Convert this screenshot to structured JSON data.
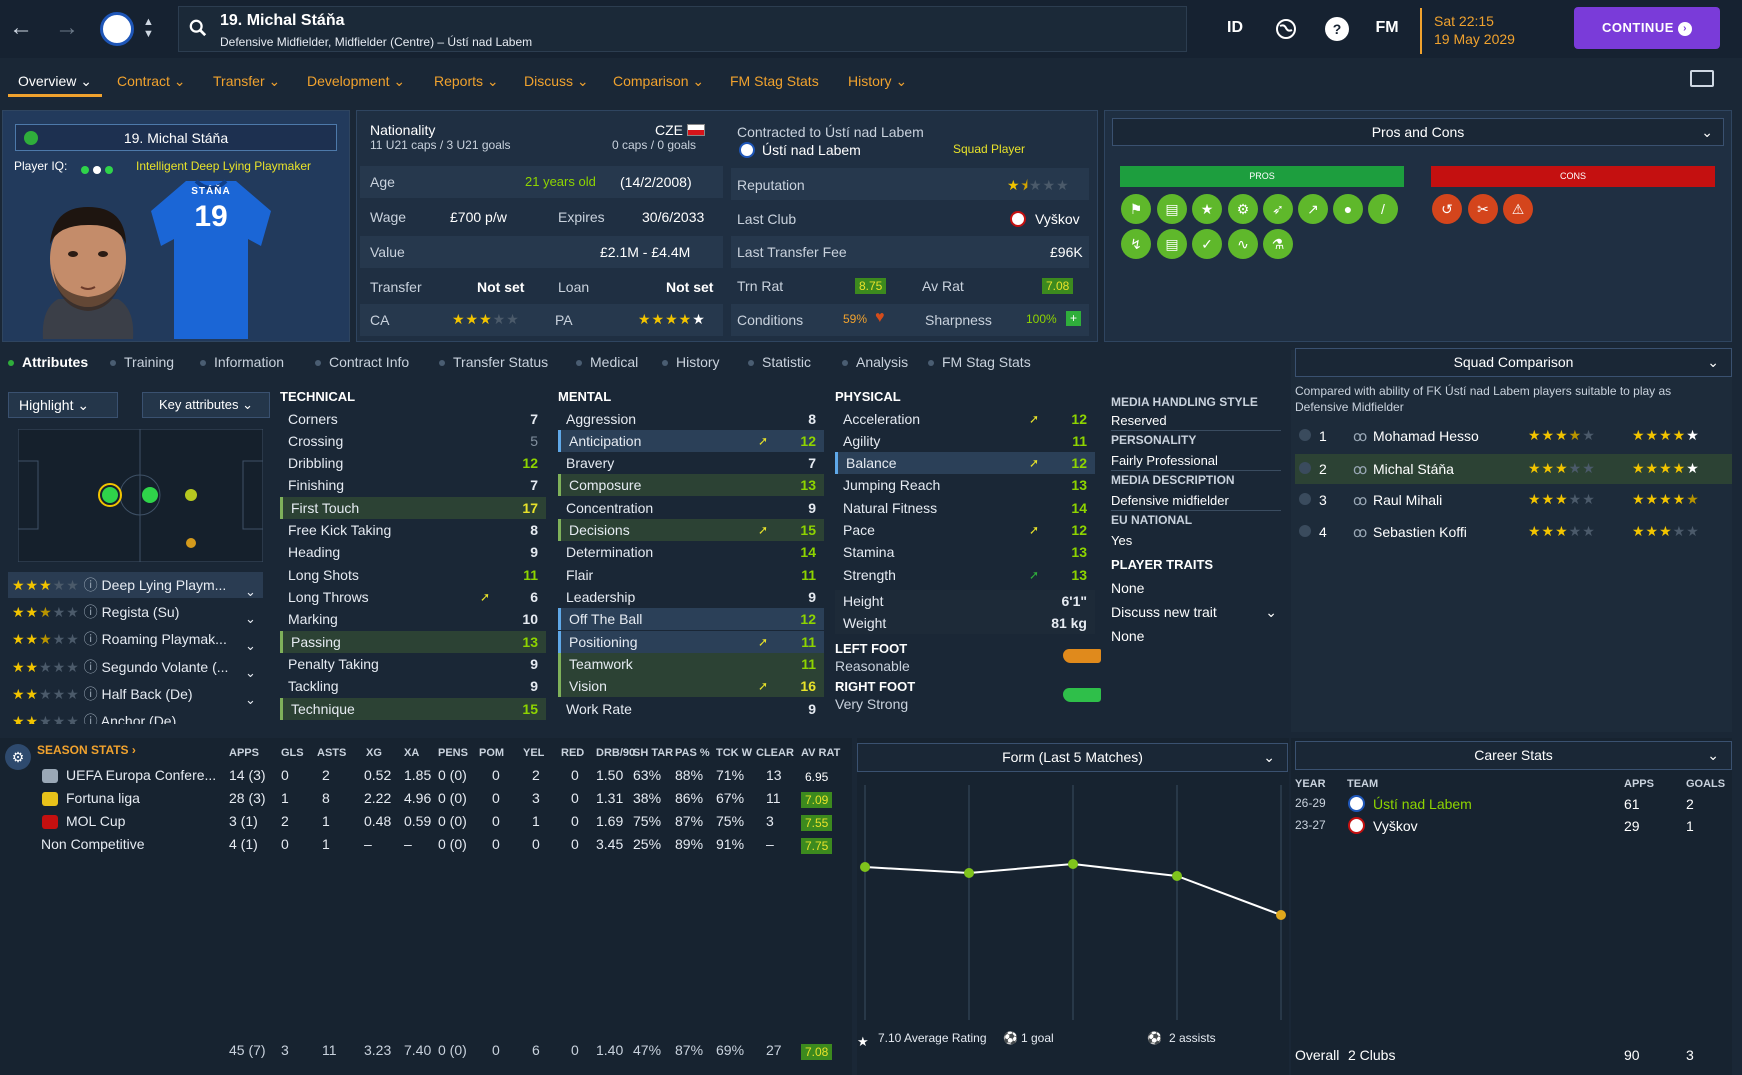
{
  "header": {
    "player_name": "19. Michal Stáňa",
    "player_position": "Defensive Midfielder, Midfielder (Centre) – Ústí nad Labem",
    "id_label": "ID",
    "fm_label": "FM",
    "date_time": "Sat 22:15",
    "date": "19 May 2029",
    "continue_label": "CONTINUE"
  },
  "menu": [
    "Overview",
    "Contract",
    "Transfer",
    "Development",
    "Reports",
    "Discuss",
    "Comparison",
    "FM Stag Stats",
    "History"
  ],
  "profile": {
    "name": "19. Michal Stáňa",
    "iq_label": "Player IQ:",
    "iq_desc": "Intelligent  Deep Lying Playmaker",
    "shirt_name": "STÁŇA",
    "shirt_number": "19"
  },
  "info": {
    "nationality_label": "Nationality",
    "nationality_code": "CZE",
    "caps": "11 U21 caps / 3 U21 goals",
    "senior_caps": "0 caps / 0 goals",
    "age_label": "Age",
    "age_value": "21 years old",
    "dob": "(14/2/2008)",
    "wage_label": "Wage",
    "wage_value": "£700 p/w",
    "expires_label": "Expires",
    "expires_value": "30/6/2033",
    "value_label": "Value",
    "value_value": "£2.1M - £4.4M",
    "transfer_label": "Transfer",
    "transfer_value": "Not set",
    "loan_label": "Loan",
    "loan_value": "Not set",
    "ca_label": "CA",
    "pa_label": "PA",
    "contracted_label": "Contracted to Ústí nad Labem",
    "club": "Ústí nad Labem",
    "squad_status": "Squad Player",
    "reputation_label": "Reputation",
    "last_club_label": "Last Club",
    "last_club_value": "Vyškov",
    "last_fee_label": "Last Transfer Fee",
    "last_fee_value": "£96K",
    "trn_rat_label": "Trn Rat",
    "trn_rat_value": "8.75",
    "av_rat_label": "Av Rat",
    "av_rat_value": "7.08",
    "conditions_label": "Conditions",
    "conditions_value": "59%",
    "sharpness_label": "Sharpness",
    "sharpness_value": "100%"
  },
  "pros_cons": {
    "title": "Pros and Cons",
    "pros_label": "PROS",
    "cons_label": "CONS"
  },
  "subtabs": [
    "Attributes",
    "Training",
    "Information",
    "Contract Info",
    "Transfer Status",
    "Medical",
    "History",
    "Statistic",
    "Analysis",
    "FM Stag Stats"
  ],
  "highlight": {
    "label": "Highlight",
    "key_label": "Key attributes"
  },
  "roles": [
    {
      "name": "Deep Lying Playm...",
      "stars": 3
    },
    {
      "name": "Regista (Su)",
      "stars": 2.5
    },
    {
      "name": "Roaming Playmak...",
      "stars": 2.5
    },
    {
      "name": "Segundo Volante (...",
      "stars": 2
    },
    {
      "name": "Half Back (De)",
      "stars": 2
    },
    {
      "name": "Anchor (De)",
      "stars": 2
    }
  ],
  "technical": {
    "title": "TECHNICAL",
    "items": [
      [
        "Corners",
        "7"
      ],
      [
        "Crossing",
        "5"
      ],
      [
        "Dribbling",
        "12"
      ],
      [
        "Finishing",
        "7"
      ],
      [
        "First Touch",
        "17"
      ],
      [
        "Free Kick Taking",
        "8"
      ],
      [
        "Heading",
        "9"
      ],
      [
        "Long Shots",
        "11"
      ],
      [
        "Long Throws",
        "6"
      ],
      [
        "Marking",
        "10"
      ],
      [
        "Passing",
        "13"
      ],
      [
        "Penalty Taking",
        "9"
      ],
      [
        "Tackling",
        "9"
      ],
      [
        "Technique",
        "15"
      ]
    ]
  },
  "mental": {
    "title": "MENTAL",
    "items": [
      [
        "Aggression",
        "8"
      ],
      [
        "Anticipation",
        "12"
      ],
      [
        "Bravery",
        "7"
      ],
      [
        "Composure",
        "13"
      ],
      [
        "Concentration",
        "9"
      ],
      [
        "Decisions",
        "15"
      ],
      [
        "Determination",
        "14"
      ],
      [
        "Flair",
        "11"
      ],
      [
        "Leadership",
        "9"
      ],
      [
        "Off The Ball",
        "12"
      ],
      [
        "Positioning",
        "11"
      ],
      [
        "Teamwork",
        "11"
      ],
      [
        "Vision",
        "16"
      ],
      [
        "Work Rate",
        "9"
      ]
    ]
  },
  "physical": {
    "title": "PHYSICAL",
    "items": [
      [
        "Acceleration",
        "12"
      ],
      [
        "Agility",
        "11"
      ],
      [
        "Balance",
        "12"
      ],
      [
        "Jumping Reach",
        "13"
      ],
      [
        "Natural Fitness",
        "14"
      ],
      [
        "Pace",
        "12"
      ],
      [
        "Stamina",
        "13"
      ],
      [
        "Strength",
        "13"
      ]
    ],
    "height_label": "Height",
    "height_value": "6'1\"",
    "weight_label": "Weight",
    "weight_value": "81 kg",
    "left_foot_label": "LEFT FOOT",
    "left_foot_value": "Reasonable",
    "right_foot_label": "RIGHT FOOT",
    "right_foot_value": "Very Strong"
  },
  "media": {
    "mhs_label": "MEDIA HANDLING STYLE",
    "mhs_value": "Reserved",
    "personality_label": "PERSONALITY",
    "personality_value": "Fairly Professional",
    "desc_label": "MEDIA DESCRIPTION",
    "desc_value": "Defensive midfielder",
    "eu_label": "EU NATIONAL",
    "eu_value": "Yes",
    "traits_label": "PLAYER TRAITS",
    "traits_value": "None",
    "discuss_label": "Discuss new trait",
    "traits_value2": "None"
  },
  "squad_comparison": {
    "title": "Squad Comparison",
    "desc": "Compared with ability of FK Ústí nad Labem players suitable to play as Defensive Midfielder",
    "players": [
      {
        "rank": "1",
        "name": "Mohamad Hesso",
        "ca": 3.5,
        "pa": 5
      },
      {
        "rank": "2",
        "name": "Michal Stáňa",
        "ca": 3,
        "pa": 5
      },
      {
        "rank": "3",
        "name": "Raul Mihali",
        "ca": 3,
        "pa": 4.5
      },
      {
        "rank": "4",
        "name": "Sebastien Koffi",
        "ca": 3,
        "pa": 3
      }
    ]
  },
  "season_stats": {
    "title": "SEASON STATS",
    "columns": [
      "APPS",
      "GLS",
      "ASTS",
      "XG",
      "XA",
      "PENS",
      "POM",
      "YEL",
      "RED",
      "DRB/90",
      "SH TAR",
      "PAS %",
      "TCK W",
      "CLEAR",
      "AV RAT"
    ],
    "rows": [
      {
        "comp": "UEFA Europa Confere...",
        "vals": [
          "14 (3)",
          "0",
          "2",
          "0.52",
          "1.85",
          "0 (0)",
          "0",
          "2",
          "0",
          "1.50",
          "63%",
          "88%",
          "71%",
          "13",
          "6.95"
        ]
      },
      {
        "comp": "Fortuna liga",
        "vals": [
          "28 (3)",
          "1",
          "8",
          "2.22",
          "4.96",
          "0 (0)",
          "0",
          "3",
          "0",
          "1.31",
          "38%",
          "86%",
          "67%",
          "11",
          "7.09"
        ]
      },
      {
        "comp": "MOL Cup",
        "vals": [
          "3 (1)",
          "2",
          "1",
          "0.48",
          "0.59",
          "0 (0)",
          "0",
          "1",
          "0",
          "1.69",
          "75%",
          "87%",
          "75%",
          "3",
          "7.55"
        ]
      },
      {
        "comp": "Non Competitive",
        "vals": [
          "4 (1)",
          "0",
          "1",
          "–",
          "–",
          "0 (0)",
          "0",
          "0",
          "0",
          "3.45",
          "25%",
          "89%",
          "91%",
          "–",
          "7.75"
        ]
      }
    ],
    "totals": [
      "45 (7)",
      "3",
      "11",
      "3.23",
      "7.40",
      "0 (0)",
      "0",
      "6",
      "0",
      "1.40",
      "47%",
      "87%",
      "69%",
      "27",
      "7.08"
    ]
  },
  "form": {
    "title": "Form (Last 5 Matches)",
    "avg_rating": "7.10 Average Rating",
    "goals": "1 goal",
    "assists": "2 assists"
  },
  "chart_data": {
    "type": "line",
    "series": [
      {
        "values": [
          7.3,
          7.2,
          7.35,
          7.15,
          6.5
        ]
      }
    ],
    "ylim": [
      5,
      10
    ]
  },
  "career": {
    "title": "Career Stats",
    "columns": [
      "YEAR",
      "TEAM",
      "APPS",
      "GOALS"
    ],
    "rows": [
      {
        "year": "26-29",
        "team": "Ústí nad Labem",
        "apps": "61",
        "goals": "2"
      },
      {
        "year": "23-27",
        "team": "Vyškov",
        "apps": "29",
        "goals": "1"
      }
    ],
    "overall_label": "Overall",
    "clubs": "2 Clubs",
    "total_apps": "90",
    "total_goals": "3"
  },
  "colors": {
    "accent": "#f0a22e",
    "continue": "#7a3bd9",
    "pros": "#1d9e3e",
    "cons": "#c41010",
    "positive": "#8ed400"
  }
}
